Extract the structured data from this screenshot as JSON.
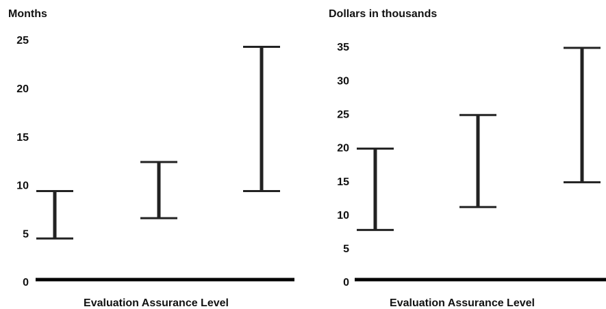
{
  "chart_data": [
    {
      "type": "range",
      "title": "Months",
      "xlabel": "Evaluation Assurance Level",
      "low": [
        4.6,
        6.7,
        9.5
      ],
      "high": [
        9.5,
        12.5,
        24.4
      ],
      "color": "#222222",
      "ylim": [
        0,
        25
      ],
      "yticks": [
        0,
        5,
        10,
        15,
        20,
        25
      ]
    },
    {
      "type": "range",
      "title": "Dollars in thousands",
      "xlabel": "Evaluation Assurance Level",
      "low": [
        7.9,
        11.3,
        15
      ],
      "high": [
        20,
        25,
        35
      ],
      "color": "#222222",
      "ylim": [
        0,
        35
      ],
      "yticks": [
        0,
        5,
        10,
        15,
        20,
        25,
        30,
        35
      ]
    }
  ]
}
